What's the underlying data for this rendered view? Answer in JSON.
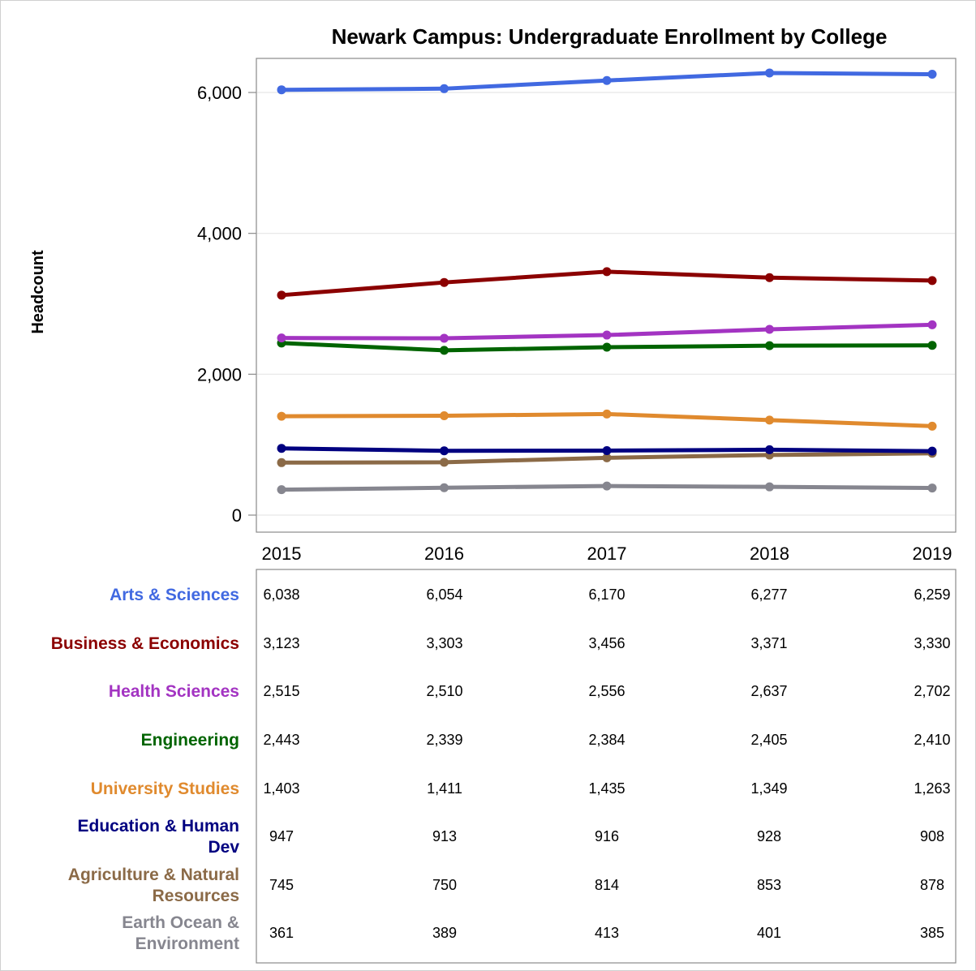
{
  "chart_data": {
    "type": "line",
    "title": "Newark Campus: Undergraduate Enrollment by College",
    "ylabel": "Headcount",
    "xlabel": "",
    "x": [
      "2015",
      "2016",
      "2017",
      "2018",
      "2019"
    ],
    "ylim": [
      0,
      6500
    ],
    "yticks": [
      0,
      2000,
      4000,
      6000
    ],
    "ytick_labels": [
      "0",
      "2,000",
      "4,000",
      "6,000"
    ],
    "grid": "horizontal",
    "series": [
      {
        "name": "Arts & Sciences",
        "label_lines": [
          "Arts & Sciences"
        ],
        "color": "#4169E1",
        "values": [
          6038,
          6054,
          6170,
          6277,
          6259
        ],
        "display": [
          "6,038",
          "6,054",
          "6,170",
          "6,277",
          "6,259"
        ]
      },
      {
        "name": "Business & Economics",
        "label_lines": [
          "Business & Economics"
        ],
        "color": "#8B0000",
        "values": [
          3123,
          3303,
          3456,
          3371,
          3330
        ],
        "display": [
          "3,123",
          "3,303",
          "3,456",
          "3,371",
          "3,330"
        ]
      },
      {
        "name": "Health Sciences",
        "label_lines": [
          "Health Sciences"
        ],
        "color": "#A334C2",
        "values": [
          2515,
          2510,
          2556,
          2637,
          2702
        ],
        "display": [
          "2,515",
          "2,510",
          "2,556",
          "2,637",
          "2,702"
        ]
      },
      {
        "name": "Engineering",
        "label_lines": [
          "Engineering"
        ],
        "color": "#006400",
        "values": [
          2443,
          2339,
          2384,
          2405,
          2410
        ],
        "display": [
          "2,443",
          "2,339",
          "2,384",
          "2,405",
          "2,410"
        ]
      },
      {
        "name": "University Studies",
        "label_lines": [
          "University Studies"
        ],
        "color": "#E08A2E",
        "values": [
          1403,
          1411,
          1435,
          1349,
          1263
        ],
        "display": [
          "1,403",
          "1,411",
          "1,435",
          "1,349",
          "1,263"
        ]
      },
      {
        "name": "Education & Human Dev",
        "label_lines": [
          "Education & Human",
          "Dev"
        ],
        "color": "#000080",
        "values": [
          947,
          913,
          916,
          928,
          908
        ],
        "display": [
          "947",
          "913",
          "916",
          "928",
          "908"
        ]
      },
      {
        "name": "Agriculture & Natural Resources",
        "label_lines": [
          "Agriculture & Natural",
          "Resources"
        ],
        "color": "#8B6A47",
        "values": [
          745,
          750,
          814,
          853,
          878
        ],
        "display": [
          "745",
          "750",
          "814",
          "853",
          "878"
        ]
      },
      {
        "name": "Earth Ocean & Environment",
        "label_lines": [
          "Earth Ocean &",
          "Environment"
        ],
        "color": "#86868F",
        "values": [
          361,
          389,
          413,
          401,
          385
        ],
        "display": [
          "361",
          "389",
          "413",
          "401",
          "385"
        ]
      }
    ]
  }
}
